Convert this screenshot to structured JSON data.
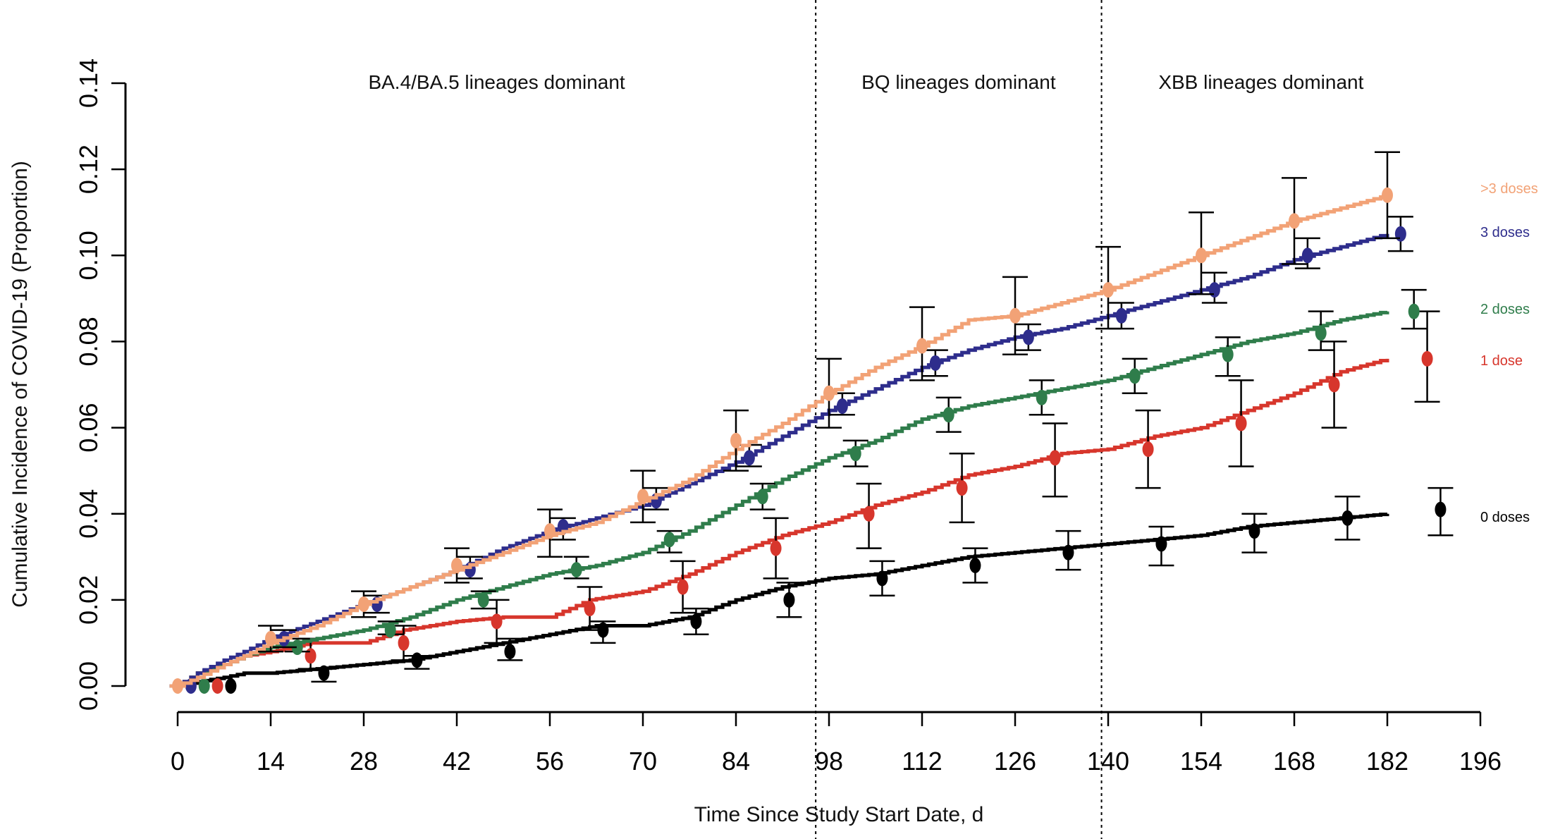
{
  "chart_data": {
    "type": "line",
    "title": "",
    "xlabel": "Time Since Study Start Date, d",
    "ylabel": "Cumulative Incidence of COVID-19 (Proportion)",
    "xlim": [
      0,
      196
    ],
    "ylim": [
      0,
      0.14
    ],
    "x_ticks": [
      0,
      14,
      28,
      42,
      56,
      70,
      84,
      98,
      112,
      126,
      140,
      154,
      168,
      182,
      196
    ],
    "x_tick_labels": [
      "0",
      "14",
      "28",
      "42",
      "56",
      "70",
      "84",
      "98",
      "112",
      "126",
      "140",
      "154",
      "168",
      "182",
      "196"
    ],
    "y_ticks": [
      0,
      0.02,
      0.04,
      0.06,
      0.08,
      0.1,
      0.12,
      0.14
    ],
    "y_tick_labels": [
      "0.00",
      "0.02",
      "0.04",
      "0.06",
      "0.08",
      "0.10",
      "0.12",
      "0.14"
    ],
    "grid": false,
    "legend_placement": "right (labels at curve ends)",
    "period_dividers": [
      96,
      139
    ],
    "period_labels": [
      {
        "text": "BA.4/BA.5 lineages dominant",
        "x_center": 48
      },
      {
        "text": "BQ lineages dominant",
        "x_center": 117.5
      },
      {
        "text": "XBB lineages dominant",
        "x_center": 163
      }
    ],
    "series": [
      {
        "name": ">3 doses",
        "color": "#F2A276",
        "curve_x": [
          0,
          3,
          7,
          10,
          14,
          21,
          28,
          35,
          42,
          49,
          56,
          63,
          70,
          77,
          84,
          91,
          98,
          105,
          112,
          119,
          126,
          133,
          140,
          147,
          154,
          161,
          168,
          175,
          182
        ],
        "curve_y": [
          0,
          0.002,
          0.005,
          0.007,
          0.01,
          0.014,
          0.019,
          0.023,
          0.027,
          0.031,
          0.035,
          0.038,
          0.043,
          0.048,
          0.055,
          0.061,
          0.068,
          0.074,
          0.079,
          0.085,
          0.086,
          0.089,
          0.092,
          0.096,
          0.1,
          0.104,
          0.108,
          0.111,
          0.114
        ],
        "points_x": [
          0,
          14,
          28,
          42,
          56,
          70,
          84,
          98,
          112,
          126,
          140,
          154,
          168,
          182
        ],
        "points_y": [
          0,
          0.011,
          0.019,
          0.028,
          0.036,
          0.044,
          0.057,
          0.068,
          0.079,
          0.086,
          0.092,
          0.1,
          0.108,
          0.114
        ],
        "ci_low": [
          0,
          0.008,
          0.016,
          0.024,
          0.03,
          0.038,
          0.05,
          0.06,
          0.071,
          0.077,
          0.083,
          0.091,
          0.098,
          0.104
        ],
        "ci_high": [
          0,
          0.014,
          0.022,
          0.032,
          0.041,
          0.05,
          0.064,
          0.076,
          0.088,
          0.095,
          0.102,
          0.11,
          0.118,
          0.124
        ]
      },
      {
        "name": "3 doses",
        "color": "#2E2D8C",
        "curve_x": [
          0,
          3,
          7,
          10,
          14,
          21,
          28,
          35,
          42,
          49,
          56,
          63,
          70,
          77,
          84,
          91,
          98,
          105,
          112,
          119,
          126,
          133,
          140,
          147,
          154,
          161,
          168,
          175,
          182
        ],
        "curve_y": [
          0,
          0.003,
          0.006,
          0.008,
          0.011,
          0.015,
          0.019,
          0.023,
          0.027,
          0.032,
          0.036,
          0.039,
          0.042,
          0.047,
          0.052,
          0.058,
          0.064,
          0.069,
          0.074,
          0.078,
          0.081,
          0.083,
          0.086,
          0.089,
          0.092,
          0.095,
          0.099,
          0.102,
          0.105
        ],
        "points_x": [
          2,
          16,
          30,
          44,
          58,
          72,
          86,
          100,
          114,
          128,
          142,
          156,
          170,
          184
        ],
        "points_y": [
          0,
          0.011,
          0.019,
          0.027,
          0.037,
          0.043,
          0.053,
          0.065,
          0.075,
          0.081,
          0.086,
          0.092,
          0.1,
          0.105
        ],
        "ci_low": [
          0,
          0.009,
          0.017,
          0.025,
          0.034,
          0.041,
          0.051,
          0.063,
          0.072,
          0.078,
          0.083,
          0.089,
          0.097,
          0.101
        ],
        "ci_high": [
          0,
          0.013,
          0.021,
          0.03,
          0.039,
          0.046,
          0.056,
          0.068,
          0.078,
          0.084,
          0.089,
          0.096,
          0.104,
          0.109
        ]
      },
      {
        "name": "2 doses",
        "color": "#2F7D4B",
        "curve_x": [
          0,
          3,
          7,
          10,
          14,
          21,
          28,
          35,
          42,
          49,
          56,
          63,
          70,
          77,
          84,
          91,
          98,
          105,
          112,
          119,
          126,
          133,
          140,
          147,
          154,
          161,
          168,
          175,
          182
        ],
        "curve_y": [
          0,
          0.003,
          0.005,
          0.007,
          0.009,
          0.011,
          0.013,
          0.016,
          0.02,
          0.023,
          0.026,
          0.028,
          0.031,
          0.036,
          0.042,
          0.048,
          0.053,
          0.057,
          0.062,
          0.065,
          0.067,
          0.069,
          0.071,
          0.074,
          0.077,
          0.08,
          0.082,
          0.085,
          0.087
        ],
        "points_x": [
          4,
          18,
          32,
          46,
          60,
          74,
          88,
          102,
          116,
          130,
          144,
          158,
          172,
          186
        ],
        "points_y": [
          0,
          0.009,
          0.013,
          0.02,
          0.027,
          0.034,
          0.044,
          0.054,
          0.063,
          0.067,
          0.072,
          0.077,
          0.082,
          0.087
        ],
        "ci_low": [
          0,
          0.008,
          0.012,
          0.018,
          0.025,
          0.031,
          0.041,
          0.051,
          0.059,
          0.063,
          0.068,
          0.072,
          0.078,
          0.083
        ],
        "ci_high": [
          0,
          0.011,
          0.015,
          0.022,
          0.03,
          0.036,
          0.047,
          0.057,
          0.067,
          0.071,
          0.076,
          0.081,
          0.087,
          0.092
        ]
      },
      {
        "name": "1 dose",
        "color": "#D7362C",
        "curve_x": [
          0,
          3,
          7,
          10,
          14,
          20,
          28,
          34,
          42,
          49,
          56,
          62,
          70,
          77,
          84,
          91,
          98,
          105,
          112,
          119,
          126,
          133,
          140,
          147,
          154,
          161,
          168,
          175,
          182
        ],
        "curve_y": [
          0,
          0.003,
          0.005,
          0.007,
          0.008,
          0.01,
          0.01,
          0.013,
          0.015,
          0.016,
          0.016,
          0.02,
          0.022,
          0.026,
          0.031,
          0.035,
          0.038,
          0.042,
          0.045,
          0.049,
          0.051,
          0.054,
          0.055,
          0.058,
          0.06,
          0.064,
          0.068,
          0.073,
          0.076
        ],
        "points_x": [
          6,
          20,
          34,
          48,
          62,
          76,
          90,
          104,
          118,
          132,
          146,
          160,
          174,
          188
        ],
        "points_y": [
          0,
          0.007,
          0.01,
          0.015,
          0.018,
          0.023,
          0.032,
          0.04,
          0.046,
          0.053,
          0.055,
          0.061,
          0.07,
          0.076
        ],
        "ci_low": [
          0,
          0.004,
          0.006,
          0.01,
          0.013,
          0.017,
          0.025,
          0.032,
          0.038,
          0.044,
          0.046,
          0.051,
          0.06,
          0.066
        ],
        "ci_high": [
          0,
          0.011,
          0.014,
          0.02,
          0.023,
          0.029,
          0.039,
          0.047,
          0.054,
          0.061,
          0.064,
          0.071,
          0.08,
          0.087
        ]
      },
      {
        "name": "0 doses",
        "color": "#000000",
        "curve_x": [
          0,
          3,
          7,
          10,
          14,
          21,
          28,
          35,
          42,
          49,
          56,
          63,
          70,
          77,
          84,
          91,
          98,
          105,
          112,
          119,
          126,
          133,
          140,
          147,
          154,
          161,
          168,
          175,
          182
        ],
        "curve_y": [
          0,
          0.001,
          0.002,
          0.003,
          0.003,
          0.004,
          0.005,
          0.006,
          0.008,
          0.01,
          0.012,
          0.014,
          0.014,
          0.016,
          0.02,
          0.023,
          0.025,
          0.026,
          0.028,
          0.03,
          0.031,
          0.032,
          0.033,
          0.034,
          0.035,
          0.037,
          0.038,
          0.039,
          0.04
        ],
        "points_x": [
          8,
          22,
          36,
          50,
          64,
          78,
          92,
          106,
          120,
          134,
          148,
          162,
          176,
          190
        ],
        "points_y": [
          0,
          0.003,
          0.006,
          0.008,
          0.013,
          0.015,
          0.02,
          0.025,
          0.028,
          0.031,
          0.033,
          0.036,
          0.039,
          0.041
        ],
        "ci_low": [
          0,
          0.001,
          0.004,
          0.006,
          0.01,
          0.012,
          0.016,
          0.021,
          0.024,
          0.027,
          0.028,
          0.031,
          0.034,
          0.035
        ],
        "ci_high": [
          0,
          0.004,
          0.007,
          0.011,
          0.015,
          0.018,
          0.024,
          0.029,
          0.032,
          0.036,
          0.037,
          0.04,
          0.044,
          0.046
        ]
      }
    ]
  }
}
